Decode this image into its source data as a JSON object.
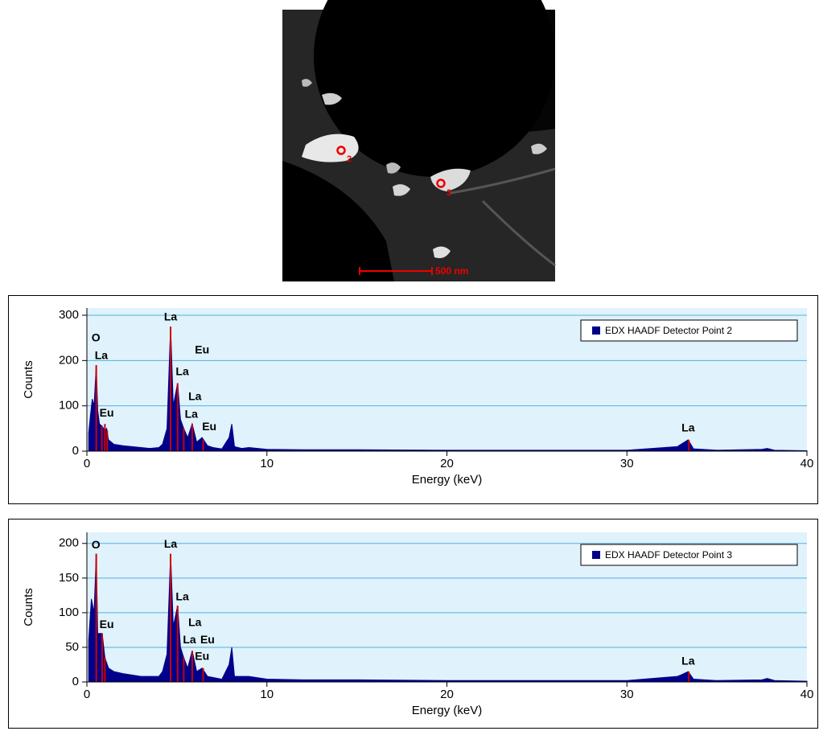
{
  "image": {
    "points": [
      "2",
      "3"
    ],
    "scale_bar": "500 nm"
  },
  "chart_data": [
    {
      "type": "area",
      "xlabel": "Energy (keV)",
      "ylabel": "Counts",
      "xlim": [
        0,
        40
      ],
      "xticks": [
        0,
        10,
        20,
        30,
        40
      ],
      "ylim": [
        0,
        316
      ],
      "yticks": [
        0,
        100,
        200,
        300
      ],
      "grid": true,
      "legend": "top-right",
      "series": [
        {
          "name": "EDX HAADF Detector Point 2",
          "color": "#00008b",
          "x": [
            0.1,
            0.2,
            0.3,
            0.4,
            0.52,
            0.6,
            0.7,
            0.85,
            1.0,
            1.1,
            1.2,
            1.5,
            2,
            2.5,
            3,
            3.5,
            4,
            4.2,
            4.45,
            4.65,
            4.8,
            5.04,
            5.2,
            5.38,
            5.6,
            5.85,
            6.1,
            6.4,
            6.7,
            7,
            7.5,
            7.9,
            8.05,
            8.2,
            8.6,
            9,
            10,
            12,
            15,
            20,
            25,
            30,
            32.8,
            33.0,
            33.4,
            33.7,
            35,
            37.5,
            37.8,
            38.2,
            40
          ],
          "values": [
            40,
            80,
            115,
            100,
            190,
            90,
            60,
            55,
            45,
            50,
            25,
            15,
            12,
            10,
            8,
            6,
            8,
            15,
            50,
            275,
            100,
            150,
            70,
            50,
            30,
            60,
            20,
            30,
            12,
            8,
            5,
            30,
            60,
            10,
            6,
            8,
            4,
            3,
            3,
            2,
            2,
            2,
            10,
            15,
            25,
            5,
            2,
            4,
            6,
            2,
            1
          ]
        }
      ],
      "markers": {
        "color": "#cc0000",
        "x": [
          0.52,
          0.83,
          1.0,
          1.13,
          4.65,
          5.04,
          5.38,
          5.85,
          6.46,
          33.44
        ],
        "values": [
          190,
          55,
          60,
          45,
          275,
          150,
          50,
          60,
          25,
          25
        ]
      },
      "annotations": [
        {
          "text": "O",
          "x": 0.5,
          "y": 249
        },
        {
          "text": "La",
          "x": 0.8,
          "y": 210
        },
        {
          "text": "La",
          "x": 4.65,
          "y": 295
        },
        {
          "text": "Eu",
          "x": 6.4,
          "y": 222
        },
        {
          "text": "La",
          "x": 5.3,
          "y": 174
        },
        {
          "text": "La",
          "x": 6.0,
          "y": 119
        },
        {
          "text": "La",
          "x": 5.8,
          "y": 80
        },
        {
          "text": "Eu",
          "x": 6.8,
          "y": 53
        },
        {
          "text": "Eu",
          "x": 1.1,
          "y": 83
        },
        {
          "text": "La",
          "x": 33.4,
          "y": 50
        }
      ]
    },
    {
      "type": "area",
      "xlabel": "Energy (keV)",
      "ylabel": "Counts",
      "xlim": [
        0,
        40
      ],
      "xticks": [
        0,
        10,
        20,
        30,
        40
      ],
      "ylim": [
        0,
        216
      ],
      "yticks": [
        0,
        50,
        100,
        150,
        200
      ],
      "grid": true,
      "legend": "top-right",
      "series": [
        {
          "name": "EDX HAADF Detector Point 3",
          "color": "#00008b",
          "x": [
            0.1,
            0.25,
            0.4,
            0.52,
            0.6,
            0.85,
            1.0,
            1.2,
            1.5,
            2,
            2.5,
            3,
            4,
            4.2,
            4.45,
            4.65,
            4.8,
            5.04,
            5.2,
            5.38,
            5.6,
            5.85,
            6.1,
            6.4,
            6.7,
            7.5,
            7.9,
            8.05,
            8.2,
            9,
            10,
            12,
            15,
            20,
            25,
            30,
            32.8,
            33.0,
            33.4,
            33.7,
            35,
            37.5,
            37.8,
            38.2,
            40
          ],
          "values": [
            60,
            120,
            100,
            185,
            70,
            70,
            35,
            20,
            15,
            12,
            10,
            8,
            8,
            15,
            40,
            185,
            80,
            110,
            50,
            35,
            20,
            45,
            15,
            20,
            8,
            4,
            25,
            50,
            8,
            8,
            4,
            3,
            3,
            2,
            2,
            2,
            8,
            10,
            15,
            4,
            2,
            3,
            5,
            2,
            1
          ]
        }
      ],
      "markers": {
        "color": "#cc0000",
        "x": [
          0.52,
          0.85,
          1.0,
          4.65,
          5.04,
          5.38,
          5.85,
          6.46,
          33.44
        ],
        "values": [
          185,
          70,
          35,
          185,
          110,
          35,
          45,
          20,
          15
        ]
      },
      "annotations": [
        {
          "text": "O",
          "x": 0.5,
          "y": 197
        },
        {
          "text": "Eu",
          "x": 1.1,
          "y": 82
        },
        {
          "text": "La",
          "x": 4.65,
          "y": 198
        },
        {
          "text": "La",
          "x": 5.3,
          "y": 122
        },
        {
          "text": "La",
          "x": 6.0,
          "y": 85
        },
        {
          "text": "La",
          "x": 5.7,
          "y": 60
        },
        {
          "text": "Eu",
          "x": 6.7,
          "y": 60
        },
        {
          "text": "Eu",
          "x": 6.4,
          "y": 36
        },
        {
          "text": "La",
          "x": 33.4,
          "y": 29
        }
      ]
    }
  ]
}
